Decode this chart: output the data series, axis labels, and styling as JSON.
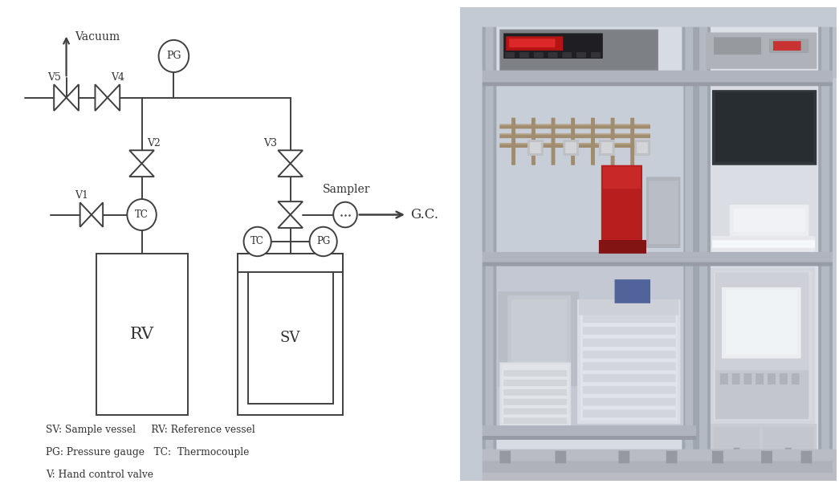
{
  "bg_color": "#ffffff",
  "line_color": "#404040",
  "text_color": "#333333",
  "legend_lines": [
    "SV: Sample vessel     RV: Reference vessel",
    "PG: Pressure gauge   TC:  Thermocouple",
    "V: Hand control valve"
  ],
  "photo_bg": "#b8bec8",
  "rack_color": "#c8cdd6",
  "rack_post_color": "#b0b6c0",
  "shelf_color": "#a8aeb8"
}
